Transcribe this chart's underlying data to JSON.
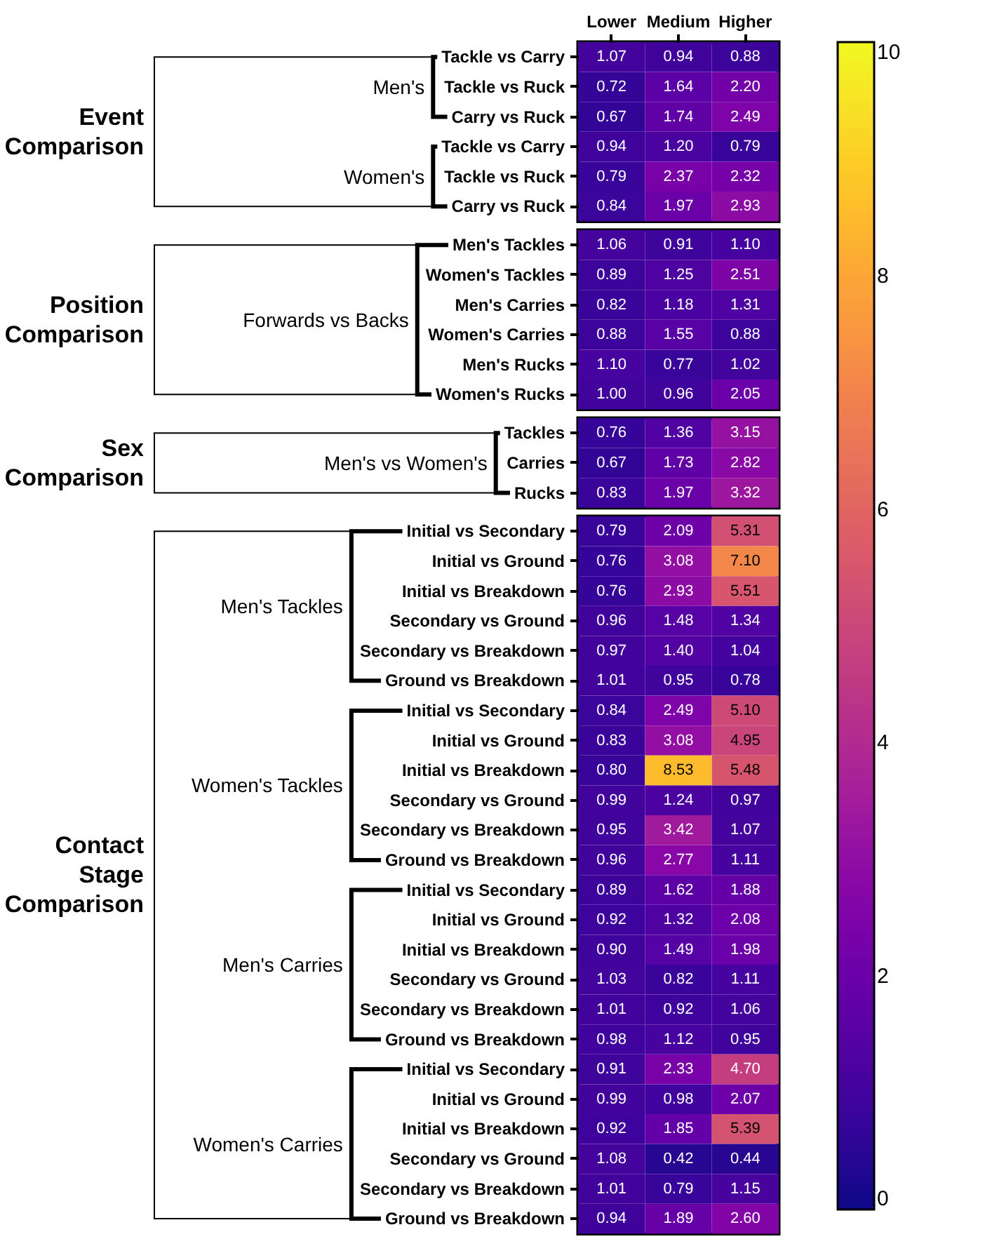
{
  "chart_data": [
    {
      "type": "heatmap",
      "annotations": [
        "Event Comparison",
        "Men's",
        "Women's"
      ],
      "categories": [
        "Lower",
        "Medium",
        "Higher"
      ],
      "y_categories": [
        "Tackle vs Carry",
        "Tackle vs Ruck",
        "Carry vs Ruck",
        "Tackle vs Carry",
        "Tackle vs Ruck",
        "Carry vs Ruck"
      ],
      "cells": [
        [
          1.07,
          0.94,
          0.88
        ],
        [
          0.72,
          1.64,
          2.2
        ],
        [
          0.67,
          1.74,
          2.49
        ],
        [
          0.94,
          1.2,
          0.79
        ],
        [
          0.79,
          2.37,
          2.32
        ],
        [
          0.84,
          1.97,
          2.93
        ]
      ],
      "cell_labels": [
        [
          "1.07",
          "0.94",
          "0.88"
        ],
        [
          "0.72",
          "1.64",
          "2.20"
        ],
        [
          "0.67",
          "1.74",
          "2.49"
        ],
        [
          "0.94",
          "1.20",
          "0.79"
        ],
        [
          "0.79",
          "2.37",
          "2.32"
        ],
        [
          "0.84",
          "1.97",
          "2.93"
        ]
      ],
      "clim": [
        0,
        10
      ],
      "cticks": [
        0,
        2,
        4,
        6,
        8,
        10
      ]
    },
    {
      "type": "heatmap",
      "annotations": [
        "Position Comparison",
        "Forwards vs Backs"
      ],
      "categories": [
        null,
        null,
        null
      ],
      "tick_labels": "y",
      "y_categories": [
        "Men's Tackles",
        "Women's Tackles",
        "Men's Carries",
        "Women's Carries",
        "Men's Rucks",
        "Women's Rucks"
      ],
      "cells": [
        [
          1.06,
          0.91,
          1.1
        ],
        [
          0.89,
          1.25,
          2.51
        ],
        [
          0.82,
          1.18,
          1.31
        ],
        [
          0.88,
          1.55,
          0.88
        ],
        [
          1.1,
          0.77,
          1.02
        ],
        [
          1.0,
          0.96,
          2.05
        ]
      ],
      "cell_labels": [
        [
          "1.06",
          "0.91",
          "1.10"
        ],
        [
          "0.89",
          "1.25",
          "2.51"
        ],
        [
          "0.82",
          "1.18",
          "1.31"
        ],
        [
          "0.88",
          "1.55",
          "0.88"
        ],
        [
          "1.10",
          "0.77",
          "1.02"
        ],
        [
          "1.00",
          "0.96",
          "2.05"
        ]
      ]
    },
    {
      "type": "heatmap",
      "annotations": [
        "Sex Comparison",
        "Men's vs Women's"
      ],
      "categories": [
        null,
        null,
        null
      ],
      "tick_labels": "y",
      "y_categories": [
        "Tackles",
        "Carries",
        "Rucks"
      ],
      "cells": [
        [
          0.76,
          1.36,
          3.15
        ],
        [
          0.67,
          1.73,
          2.82
        ],
        [
          0.83,
          1.97,
          3.32
        ]
      ],
      "cell_labels": [
        [
          "0.76",
          "1.36",
          "3.15"
        ],
        [
          "0.67",
          "1.73",
          "2.82"
        ],
        [
          "0.83",
          "1.97",
          "3.32"
        ]
      ]
    },
    {
      "type": "heatmap",
      "annotations": [
        "Contact Stage Comparison",
        "Men's Tackles",
        "Women's Tackles",
        "Men's Carries",
        "Women's Carries"
      ],
      "categories": [
        null,
        null,
        null
      ],
      "tick_labels": "y",
      "y_categories": [
        "Initial vs Secondary",
        "Initial vs Ground",
        "Initial vs Breakdown",
        "Secondary vs Ground",
        "Secondary vs Breakdown",
        "Ground vs Breakdown",
        "Initial vs Secondary",
        "Initial vs Ground",
        "Initial vs Breakdown",
        "Secondary vs Ground",
        "Secondary vs Breakdown",
        "Ground vs Breakdown",
        "Initial vs Secondary",
        "Initial vs Ground",
        "Initial vs Breakdown",
        "Secondary vs Ground",
        "Secondary vs Breakdown",
        "Ground vs Breakdown",
        "Initial vs Secondary",
        "Initial vs Ground",
        "Initial vs Breakdown",
        "Secondary vs Ground",
        "Secondary vs Breakdown",
        "Ground vs Breakdown"
      ],
      "cells": [
        [
          0.79,
          2.09,
          5.31
        ],
        [
          0.76,
          3.08,
          7.1
        ],
        [
          0.76,
          2.93,
          5.51
        ],
        [
          0.96,
          1.48,
          1.34
        ],
        [
          0.97,
          1.4,
          1.04
        ],
        [
          1.01,
          0.95,
          0.78
        ],
        [
          0.84,
          2.49,
          5.1
        ],
        [
          0.83,
          3.08,
          4.95
        ],
        [
          0.8,
          8.53,
          5.48
        ],
        [
          0.99,
          1.24,
          0.97
        ],
        [
          0.95,
          3.42,
          1.07
        ],
        [
          0.96,
          2.77,
          1.11
        ],
        [
          0.89,
          1.62,
          1.88
        ],
        [
          0.92,
          1.32,
          2.08
        ],
        [
          0.9,
          1.49,
          1.98
        ],
        [
          1.03,
          0.82,
          1.11
        ],
        [
          1.01,
          0.92,
          1.06
        ],
        [
          0.98,
          1.12,
          0.95
        ],
        [
          0.91,
          2.33,
          4.7
        ],
        [
          0.99,
          0.98,
          2.07
        ],
        [
          0.92,
          1.85,
          5.39
        ],
        [
          1.08,
          0.42,
          0.44
        ],
        [
          1.01,
          0.79,
          1.15
        ],
        [
          0.94,
          1.89,
          2.6
        ]
      ],
      "cell_labels": [
        [
          "0.79",
          "2.09",
          "5.31"
        ],
        [
          "0.76",
          "3.08",
          "7.10"
        ],
        [
          "0.76",
          "2.93",
          "5.51"
        ],
        [
          "0.96",
          "1.48",
          "1.34"
        ],
        [
          "0.97",
          "1.40",
          "1.04"
        ],
        [
          "1.01",
          "0.95",
          "0.78"
        ],
        [
          "0.84",
          "2.49",
          "5.10"
        ],
        [
          "0.83",
          "3.08",
          "4.95"
        ],
        [
          "0.80",
          "8.53",
          "5.48"
        ],
        [
          "0.99",
          "1.24",
          "0.97"
        ],
        [
          "0.95",
          "3.42",
          "1.07"
        ],
        [
          "0.96",
          "2.77",
          "1.11"
        ],
        [
          "0.89",
          "1.62",
          "1.88"
        ],
        [
          "0.92",
          "1.32",
          "2.08"
        ],
        [
          "0.90",
          "1.49",
          "1.98"
        ],
        [
          "1.03",
          "0.82",
          "1.11"
        ],
        [
          "1.01",
          "0.92",
          "1.06"
        ],
        [
          "0.98",
          "1.12",
          "0.95"
        ],
        [
          "0.91",
          "2.33",
          "4.70"
        ],
        [
          "0.99",
          "0.98",
          "2.07"
        ],
        [
          "0.92",
          "1.85",
          "5.39"
        ],
        [
          "1.08",
          "0.42",
          "0.44"
        ],
        [
          "1.01",
          "0.79",
          "1.15"
        ],
        [
          "0.94",
          "1.89",
          "2.60"
        ]
      ]
    }
  ]
}
